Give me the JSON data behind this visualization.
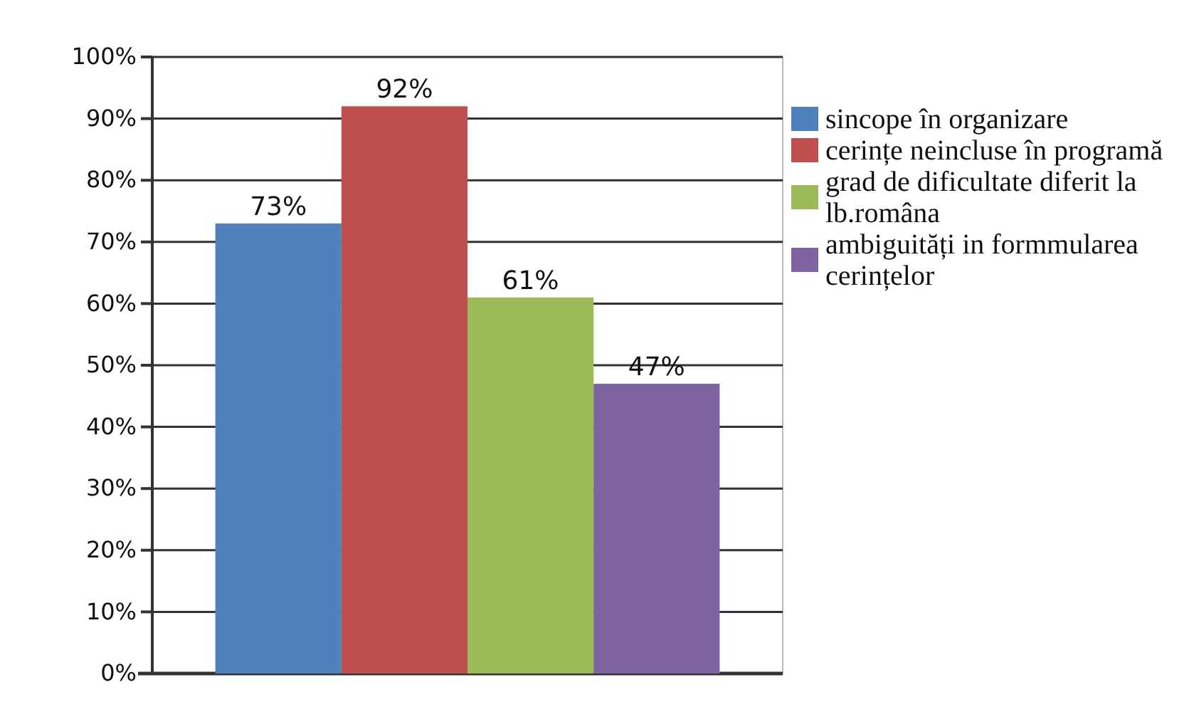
{
  "chart_data": {
    "type": "bar",
    "categories": [
      null
    ],
    "series": [
      {
        "name": "sincope în organizare",
        "color": "#4f81bd",
        "values": [
          73
        ],
        "value_labels": [
          "73%"
        ]
      },
      {
        "name": "cerințe neincluse în programă",
        "color": "#c0504d",
        "values": [
          92
        ],
        "value_labels": [
          "92%"
        ]
      },
      {
        "name": "grad de dificultate diferit la lb.româna",
        "color": "#9bbb59",
        "values": [
          61
        ],
        "value_labels": [
          "61%"
        ]
      },
      {
        "name": "ambiguități in formmularea cerințelor",
        "color": "#8064a2",
        "values": [
          47
        ],
        "value_labels": [
          "47%"
        ]
      }
    ],
    "ylim": [
      0,
      100
    ],
    "yticks": [
      {
        "value": 0,
        "label": "0%"
      },
      {
        "value": 10,
        "label": "10%"
      },
      {
        "value": 20,
        "label": "20%"
      },
      {
        "value": 30,
        "label": "30%"
      },
      {
        "value": 40,
        "label": "40%"
      },
      {
        "value": 50,
        "label": "50%"
      },
      {
        "value": 60,
        "label": "60%"
      },
      {
        "value": 70,
        "label": "70%"
      },
      {
        "value": 80,
        "label": "80%"
      },
      {
        "value": 90,
        "label": "90%"
      },
      {
        "value": 100,
        "label": "100%"
      }
    ],
    "grid": "y",
    "legend": "right"
  }
}
